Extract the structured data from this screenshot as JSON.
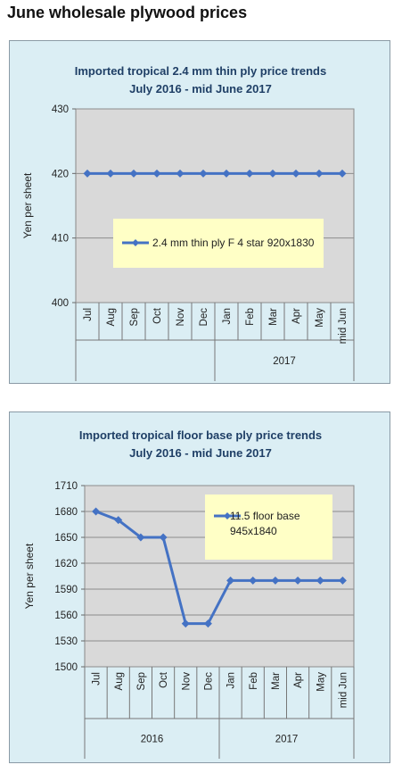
{
  "page": {
    "title": "June wholesale plywood prices"
  },
  "chart_data": [
    {
      "type": "line",
      "title": "Imported tropical 2.4 mm thin ply price trends",
      "subtitle": "July 2016 - mid June 2017",
      "ylabel": "Yen per sheet",
      "xlabel": "",
      "categories": [
        "Jul",
        "Aug",
        "Sep",
        "Oct",
        "Nov",
        "Dec",
        "Jan",
        "Feb",
        "Mar",
        "Apr",
        "May",
        "mid Jun"
      ],
      "category_labels": [
        "Jul",
        "Aug",
        "Sep",
        "Oct",
        "Nov",
        "Dec",
        "Jan",
        "Feb",
        "Mar",
        "Apr",
        "May",
        "mid Jun"
      ],
      "groups": [
        {
          "label": "",
          "span": 6
        },
        {
          "label": "2017",
          "span": 6
        }
      ],
      "ylim": [
        400,
        430
      ],
      "yticks": [
        400,
        410,
        420,
        430
      ],
      "grid": true,
      "legend_placement": "center",
      "series": [
        {
          "name": "2.4 mm thin ply F 4 star 920x1830",
          "values": [
            420,
            420,
            420,
            420,
            420,
            420,
            420,
            420,
            420,
            420,
            420,
            420
          ],
          "color": "#4472c4"
        }
      ]
    },
    {
      "type": "line",
      "title": "Imported tropical floor base ply price trends",
      "subtitle": "July 2016 - mid June 2017",
      "ylabel": "Yen per sheet",
      "xlabel": "",
      "categories": [
        "Jul",
        "Aug",
        "Sep",
        "Oct",
        "Nov",
        "Dec",
        "Jan",
        "Feb",
        "Mar",
        "Apr",
        "May",
        "mid Jun"
      ],
      "category_labels": [
        "Jul",
        "Aug",
        "Sep",
        "Oct",
        "Nov",
        "Dec",
        "Jan",
        "Feb",
        "Mar",
        "Apr",
        "May",
        "mid Jun"
      ],
      "groups": [
        {
          "label": "2016",
          "span": 6
        },
        {
          "label": "2017",
          "span": 6
        }
      ],
      "ylim": [
        1500,
        1710
      ],
      "yticks": [
        1500,
        1530,
        1560,
        1590,
        1620,
        1650,
        1680,
        1710
      ],
      "grid": true,
      "legend_placement": "top-right",
      "series": [
        {
          "name": "11.5 floor base 945x1840",
          "values": [
            1680,
            1670,
            1650,
            1650,
            1550,
            1550,
            1600,
            1600,
            1600,
            1600,
            1600,
            1600
          ],
          "color": "#4472c4"
        }
      ]
    }
  ]
}
